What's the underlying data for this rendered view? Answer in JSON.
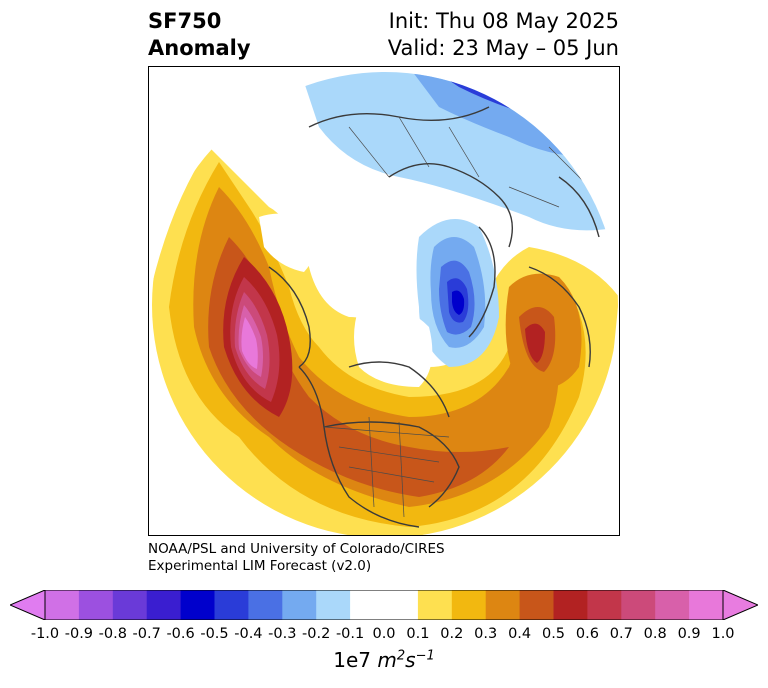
{
  "title": {
    "left_line1": "SF750",
    "left_line2": "Anomaly",
    "right_line1": "Init: Thu 08 May 2025",
    "right_line2": "Valid: 23 May – 05 Jun"
  },
  "credit": {
    "line1": "NOAA/PSL and University of Colorado/CIRES",
    "line2": "Experimental LIM Forecast (v2.0)"
  },
  "colorbar": {
    "ticks": [
      "-1.0",
      "-0.9",
      "-0.8",
      "-0.7",
      "-0.6",
      "-0.5",
      "-0.4",
      "-0.3",
      "-0.2",
      "-0.1",
      "0.0",
      "0.1",
      "0.2",
      "0.3",
      "0.4",
      "0.5",
      "0.6",
      "0.7",
      "0.8",
      "0.9",
      "1.0"
    ],
    "colors": [
      "#d070e6",
      "#9c50e0",
      "#6a3ad8",
      "#3a1ed0",
      "#0000cc",
      "#2a3cd8",
      "#4a70e4",
      "#74aaf0",
      "#aad8fa",
      "#ffffff",
      "#ffffff",
      "#fee050",
      "#f2b810",
      "#dd8612",
      "#c8561a",
      "#b22222",
      "#c2364a",
      "#cc4a7a",
      "#d860aa",
      "#e878da"
    ],
    "extend_low": "#e07cf0",
    "extend_high": "#e87ce0",
    "units_prefix": "1e7",
    "units_m": "m",
    "units_m_exp": "2",
    "units_s": "s",
    "units_s_exp": "−1"
  }
}
